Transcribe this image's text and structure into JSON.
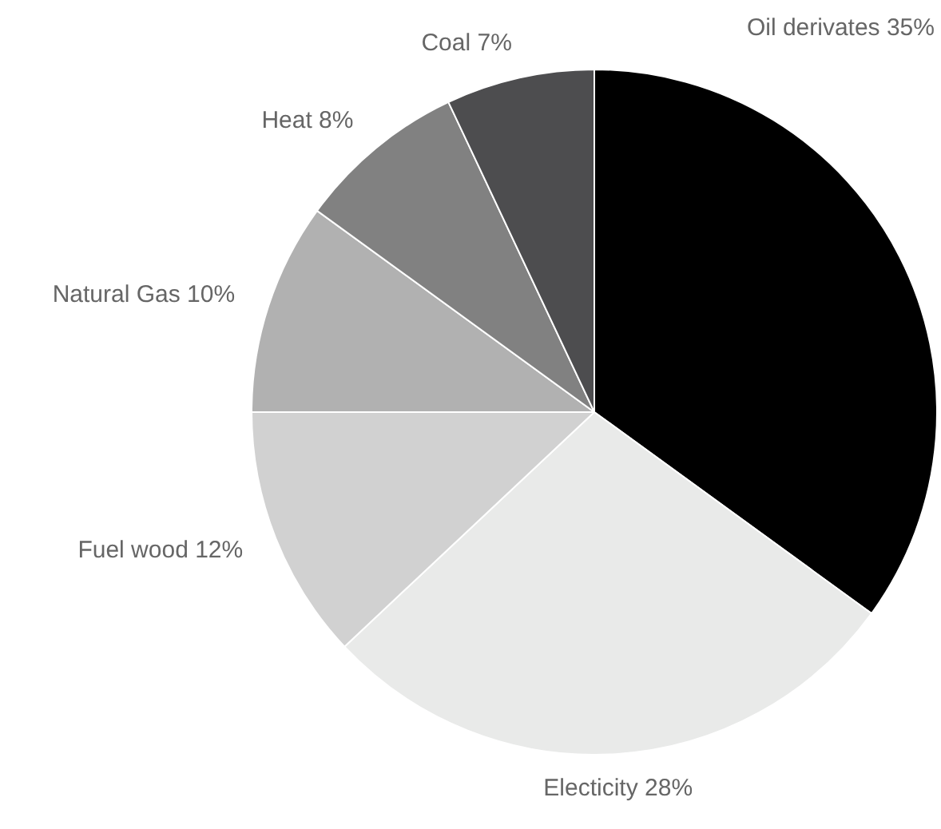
{
  "chart_data": {
    "type": "pie",
    "categories": [
      "Oil derivates",
      "Electicity",
      "Fuel wood",
      "Natural Gas",
      "Heat",
      "Coal"
    ],
    "values": [
      35,
      28,
      12,
      10,
      8,
      7
    ],
    "value_labels": [
      "35%",
      "28%",
      "12%",
      "10%",
      "8%",
      "7%"
    ],
    "colors": [
      "#000000",
      "#e9eae9",
      "#d1d1d1",
      "#b1b1b1",
      "#818181",
      "#4d4d4f"
    ],
    "legend": false
  }
}
